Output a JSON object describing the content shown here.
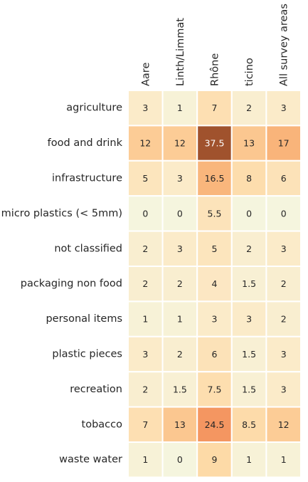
{
  "chart_data": {
    "type": "heatmap",
    "title": "",
    "xlabel": "",
    "ylabel": "",
    "columns": [
      "Aare",
      "Linth/Limmat",
      "Rhône",
      "ticino",
      "All survey areas"
    ],
    "rows": [
      "agriculture",
      "food and drink",
      "infrastructure",
      "micro plastics (< 5mm)",
      "not classified",
      "packaging non food",
      "personal items",
      "plastic pieces",
      "recreation",
      "tobacco",
      "waste water"
    ],
    "values": [
      [
        3,
        1,
        7,
        2,
        3
      ],
      [
        12,
        12,
        37.5,
        13,
        17
      ],
      [
        5,
        3,
        16.5,
        8,
        6
      ],
      [
        0,
        0,
        5.5,
        0,
        0
      ],
      [
        2,
        3,
        5,
        2,
        3
      ],
      [
        2,
        2,
        4,
        1.5,
        2
      ],
      [
        1,
        1,
        3,
        3,
        2
      ],
      [
        3,
        2,
        6,
        1.5,
        3
      ],
      [
        2,
        1.5,
        7.5,
        1.5,
        3
      ],
      [
        7,
        13,
        24.5,
        8.5,
        12
      ],
      [
        1,
        0,
        9,
        1,
        1
      ]
    ],
    "colormap": "Oranges-like",
    "vmin": 0,
    "vmax": 37.5,
    "colorbar": false,
    "annotations": true,
    "grid_color": "#ffffff"
  }
}
